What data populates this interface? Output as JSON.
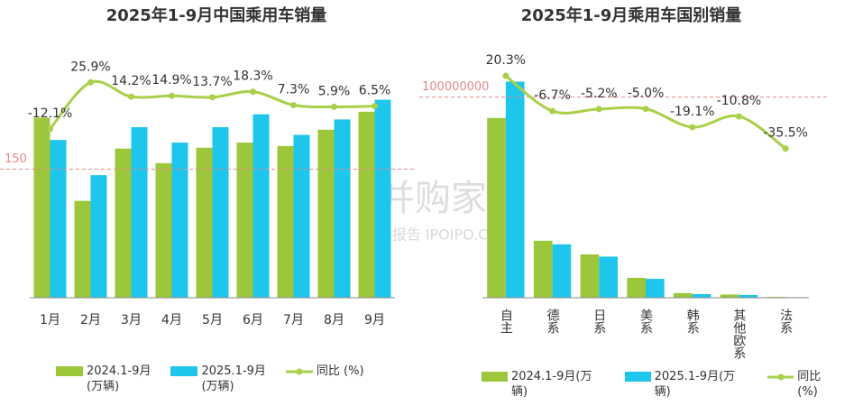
{
  "chart_data": [
    {
      "type": "bar",
      "title": "2025年1-9月中国乘用车销量",
      "categories": [
        "1月",
        "2月",
        "3月",
        "4月",
        "5月",
        "6月",
        "7月",
        "8月",
        "9月"
      ],
      "series": [
        {
          "name": "2024.1-9月\n(万辆)",
          "color": "#9cc73a",
          "values": [
            210,
            113,
            174,
            157,
            175,
            181,
            177,
            196,
            217
          ]
        },
        {
          "name": "2025.1-9月\n(万辆)",
          "color": "#1ec6ec",
          "values": [
            184,
            143,
            199,
            181,
            199,
            214,
            190,
            208,
            231
          ]
        },
        {
          "name": "同比 (%)",
          "color": "#a8d04a",
          "type": "line",
          "axis": "y2",
          "values": [
            -12.1,
            25.9,
            14.2,
            14.9,
            13.7,
            18.3,
            7.3,
            5.9,
            6.5
          ],
          "value_labels": [
            "-12.1%",
            "25.9%",
            "14.2%",
            "14.9%",
            "13.7%",
            "18.3%",
            "7.3%",
            "5.9%",
            "6.5%"
          ]
        }
      ],
      "ylim": [
        0,
        300
      ],
      "y2lim": [
        -150,
        60
      ],
      "ref_line": 150,
      "legend": "bottom"
    },
    {
      "type": "bar",
      "title": "2025年1-9月乘用车国别销量",
      "categories": [
        "自主",
        "德系",
        "日系",
        "美系",
        "韩系",
        "其他欧系",
        "法系"
      ],
      "series": [
        {
          "name": "2024.1-9月(万辆)",
          "color": "#9cc73a",
          "values": [
            89600000,
            28400000,
            21600000,
            9900000,
            2300000,
            1600000,
            400000
          ]
        },
        {
          "name": "2025.1-9月(万辆)",
          "color": "#1ec6ec",
          "values": [
            107700000,
            26600000,
            20500000,
            9400000,
            1800000,
            1400000,
            260000
          ]
        },
        {
          "name": "同比 (%)",
          "color": "#a8d04a",
          "type": "line",
          "axis": "y2",
          "values": [
            20.3,
            -6.7,
            -5.2,
            -5.0,
            -19.1,
            -10.8,
            -35.5
          ],
          "value_labels": [
            "20.3%",
            "-6.7%",
            "-5.2%",
            "-5.0%",
            "-19.1%",
            "-10.8%",
            "-35.5%"
          ]
        }
      ],
      "ylim": [
        0,
        125000000
      ],
      "y2lim": [
        -150,
        42.5
      ],
      "ref_line": 100000000,
      "legend": "bottom"
    }
  ],
  "watermark": {
    "title": "并购家",
    "subtitle": "行业报告 IPOIPO.CN"
  }
}
